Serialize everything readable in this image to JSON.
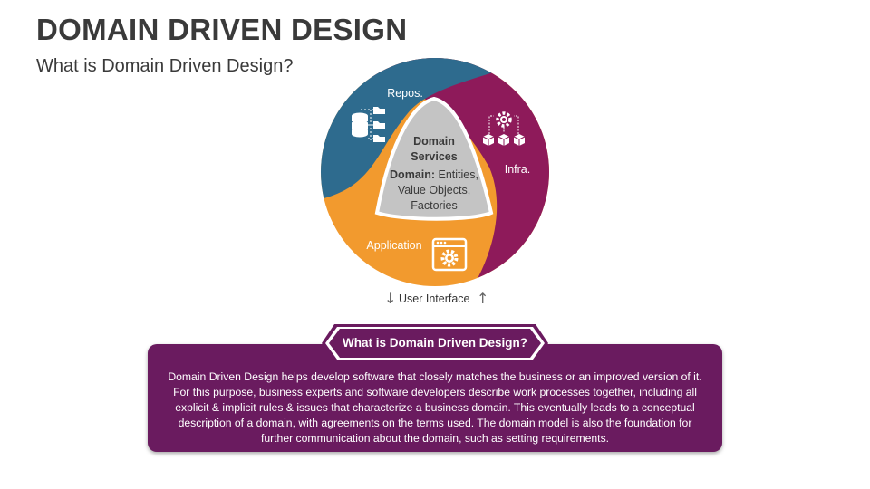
{
  "header": {
    "title": "DOMAIN DRIVEN DESIGN",
    "subtitle": "What is Domain Driven Design?"
  },
  "diagram": {
    "segments": {
      "repos": "Repos.",
      "infra": "Infra.",
      "application": "Application"
    },
    "center": {
      "line1": "Domain",
      "line2": "Services",
      "domain_bold": "Domain:",
      "domain_rest": " Entities,",
      "line4": "Value Objects,",
      "line5": "Factories"
    },
    "user_interface": "User Interface",
    "colors": {
      "repos": "#2e6b8e",
      "infra": "#8e1a5a",
      "application": "#f29a2e",
      "center": "#c4c4c4",
      "box": "#6a1b5f"
    }
  },
  "info": {
    "heading": "What is Domain Driven Design?",
    "body": "Domain Driven Design helps develop software that closely matches the business or an improved version of it. For this purpose, business experts and software developers describe work processes together, including all explicit & implicit rules & issues that characterize a business domain. This eventually leads to a conceptual description of a domain, with agreements on the terms used. The domain model is also the foundation for further communication about the domain, such as setting requirements."
  }
}
